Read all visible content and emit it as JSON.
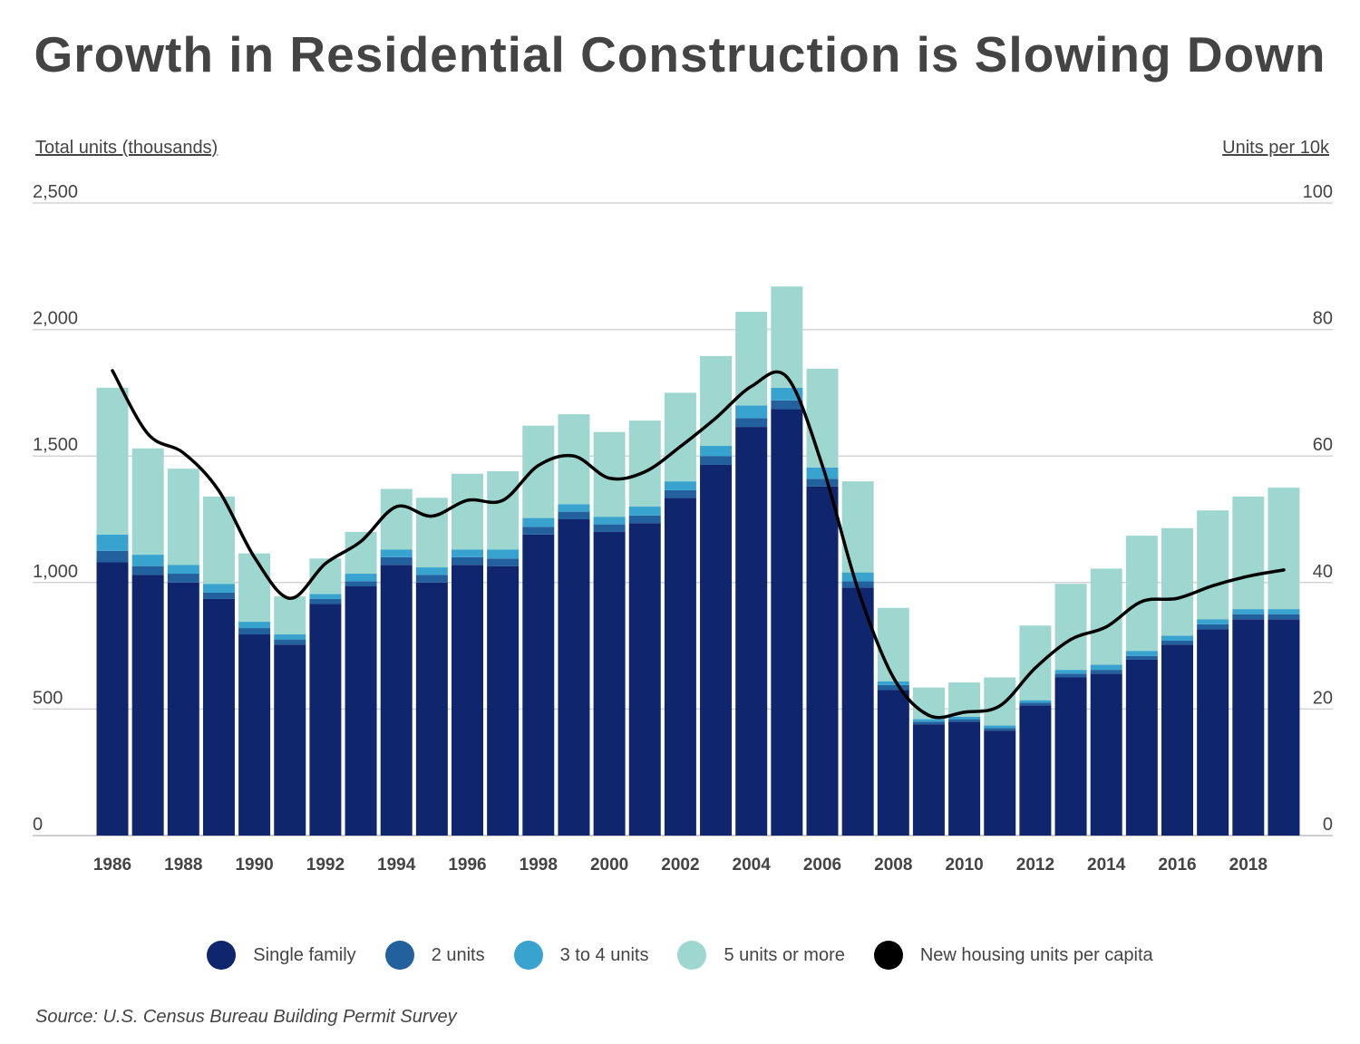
{
  "title": "Growth in Residential Construction is Slowing Down",
  "source": "Source: U.S. Census Bureau Building Permit Survey",
  "colors": {
    "single_family": "#0f266e",
    "two_units": "#22609e",
    "three_four_units": "#38a3cf",
    "five_plus": "#9dd7cf",
    "per_capita_line": "#000000",
    "gridline": "#d4d4d4",
    "text": "#444444"
  },
  "legend": [
    {
      "label": "Single family",
      "color": "#0f266e"
    },
    {
      "label": "2 units",
      "color": "#22609e"
    },
    {
      "label": "3 to 4 units",
      "color": "#38a3cf"
    },
    {
      "label": "5 units or more",
      "color": "#9dd7cf"
    },
    {
      "label": "New housing units per capita",
      "color": "#000000"
    }
  ],
  "chart_data": {
    "type": "bar",
    "stacked": true,
    "title": "Growth in Residential Construction is Slowing Down",
    "ylabel": "Total units (thousands)",
    "y2label": "Units per 10k",
    "ylim": [
      0,
      2500
    ],
    "y2lim": [
      0,
      100
    ],
    "yticks": [
      "0",
      "500",
      "1,000",
      "1,500",
      "2,000",
      "2,500"
    ],
    "y2ticks": [
      "0",
      "20",
      "40",
      "60",
      "80",
      "100"
    ],
    "xtick_labels": [
      "1986",
      "1988",
      "1990",
      "1992",
      "1994",
      "1996",
      "1998",
      "2000",
      "2002",
      "2004",
      "2006",
      "2008",
      "2010",
      "2012",
      "2014",
      "2016",
      "2018"
    ],
    "grid": true,
    "legend_position": "bottom",
    "categories": [
      1986,
      1987,
      1988,
      1989,
      1990,
      1991,
      1992,
      1993,
      1994,
      1995,
      1996,
      1997,
      1998,
      1999,
      2000,
      2001,
      2002,
      2003,
      2004,
      2005,
      2006,
      2007,
      2008,
      2009,
      2010,
      2011,
      2012,
      2013,
      2014,
      2015,
      2016,
      2017,
      2018,
      2019
    ],
    "series": [
      {
        "name": "Single family",
        "values": [
          1080,
          1030,
          1000,
          935,
          795,
          755,
          915,
          985,
          1070,
          1000,
          1070,
          1065,
          1190,
          1250,
          1200,
          1235,
          1335,
          1465,
          1615,
          1685,
          1380,
          980,
          575,
          440,
          450,
          415,
          515,
          625,
          640,
          695,
          755,
          815,
          855,
          855
        ]
      },
      {
        "name": "2 units",
        "values": [
          45,
          35,
          35,
          25,
          25,
          20,
          20,
          20,
          30,
          30,
          30,
          30,
          30,
          30,
          30,
          30,
          30,
          35,
          35,
          35,
          30,
          25,
          20,
          10,
          10,
          10,
          10,
          15,
          15,
          15,
          15,
          20,
          20,
          20
        ]
      },
      {
        "name": "3 to 4 units",
        "values": [
          65,
          45,
          35,
          35,
          25,
          20,
          20,
          30,
          30,
          30,
          30,
          35,
          35,
          30,
          30,
          35,
          35,
          40,
          50,
          50,
          45,
          35,
          15,
          10,
          10,
          10,
          10,
          15,
          20,
          20,
          20,
          20,
          20,
          20
        ]
      },
      {
        "name": "5 units or more",
        "values": [
          580,
          420,
          380,
          345,
          270,
          150,
          140,
          165,
          240,
          275,
          300,
          310,
          365,
          355,
          335,
          340,
          350,
          355,
          370,
          400,
          390,
          360,
          290,
          125,
          135,
          190,
          295,
          340,
          380,
          455,
          425,
          430,
          445,
          480
        ]
      },
      {
        "name": "New housing units per capita",
        "axis": "right",
        "type": "line",
        "values": [
          73.5,
          63.5,
          60.5,
          54.5,
          44.0,
          37.5,
          43.0,
          46.5,
          52.0,
          50.5,
          53.0,
          53.0,
          58.5,
          60.0,
          56.5,
          57.5,
          61.5,
          66.0,
          71.0,
          72.5,
          58.5,
          39.0,
          25.0,
          19.0,
          19.5,
          20.5,
          26.5,
          31.0,
          33.0,
          37.0,
          37.5,
          39.5,
          41.0,
          42.0
        ]
      }
    ]
  }
}
